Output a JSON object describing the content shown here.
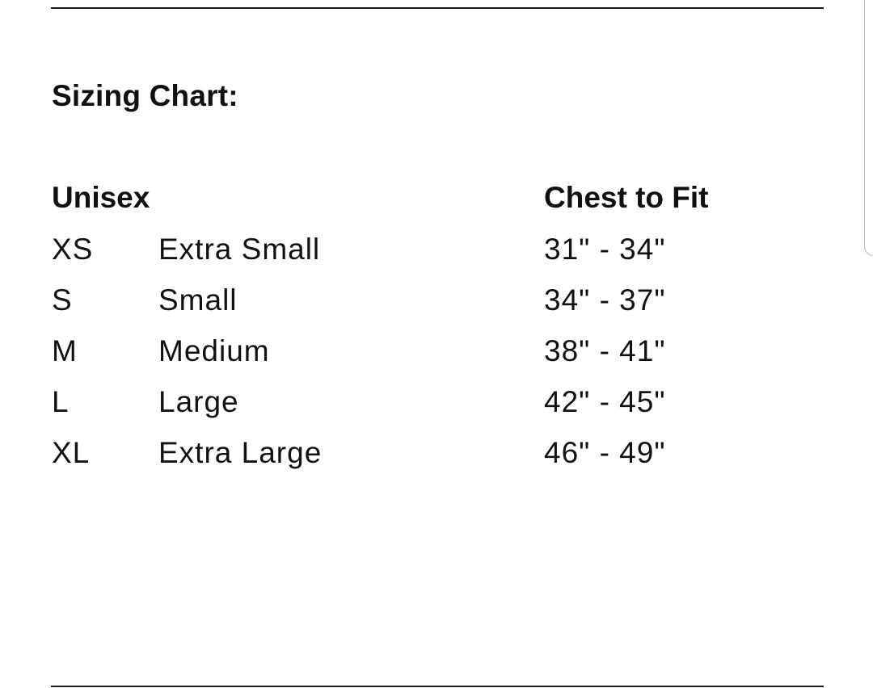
{
  "title": "Sizing Chart:",
  "headers": {
    "category": "Unisex",
    "measure": "Chest to Fit"
  },
  "rows": [
    {
      "code": "XS",
      "name": "Extra Small",
      "chest": "31\" - 34\""
    },
    {
      "code": "S",
      "name": "Small",
      "chest": "34\" - 37\""
    },
    {
      "code": "M",
      "name": "Medium",
      "chest": "38\" - 41\""
    },
    {
      "code": "L",
      "name": "Large",
      "chest": "42\" - 45\""
    },
    {
      "code": "XL",
      "name": "Extra Large",
      "chest": "46\" - 49\""
    }
  ]
}
